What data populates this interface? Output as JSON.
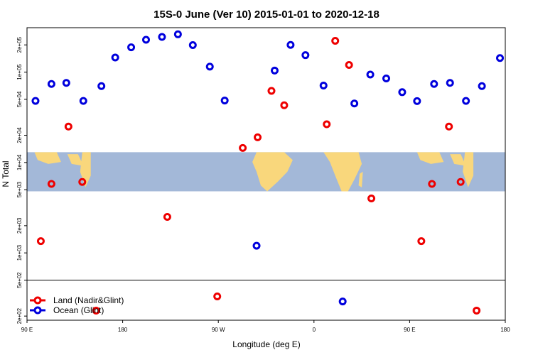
{
  "chart_data": {
    "type": "scatter",
    "title": "15S-0 June (Ver 10)   2015-01-01 to 2020-12-18",
    "xlabel": "Longitude (deg E)",
    "ylabel": "N Total",
    "x_ticks": [
      {
        "value": 90,
        "label": "90 E"
      },
      {
        "value": 180,
        "label": "180"
      },
      {
        "value": 270,
        "label": "90 W"
      },
      {
        "value": 360,
        "label": "0"
      },
      {
        "value": 450,
        "label": "90 E"
      },
      {
        "value": 540,
        "label": "180"
      }
    ],
    "xlim": [
      90,
      540
    ],
    "y_scale": "log",
    "y_ticks": [
      {
        "value": 200,
        "label": "2e+02"
      },
      {
        "value": 500,
        "label": "5e+02"
      },
      {
        "value": 1000,
        "label": "1e+03"
      },
      {
        "value": 2000,
        "label": "2e+03"
      },
      {
        "value": 5000,
        "label": "5e+03"
      },
      {
        "value": 10000,
        "label": "1e+04"
      },
      {
        "value": 20000,
        "label": "2e+04"
      },
      {
        "value": 50000,
        "label": "5e+04"
      },
      {
        "value": 100000,
        "label": "1e+05"
      },
      {
        "value": 200000,
        "label": "2e+05"
      }
    ],
    "ylim": [
      180,
      310000
    ],
    "reference_line_y": 500,
    "legend_position": "bottom-left",
    "series": [
      {
        "name": "Land (Nadir&Glint)",
        "color": "#ee0000",
        "points": [
          {
            "x": 103,
            "y": 1350
          },
          {
            "x": 113,
            "y": 5800
          },
          {
            "x": 129,
            "y": 25000
          },
          {
            "x": 142,
            "y": 6100
          },
          {
            "x": 155,
            "y": 230
          },
          {
            "x": 222,
            "y": 2500
          },
          {
            "x": 269,
            "y": 330
          },
          {
            "x": 293,
            "y": 14500
          },
          {
            "x": 307,
            "y": 19000
          },
          {
            "x": 320,
            "y": 62000
          },
          {
            "x": 332,
            "y": 43000
          },
          {
            "x": 372,
            "y": 26500
          },
          {
            "x": 380,
            "y": 222000
          },
          {
            "x": 393,
            "y": 120000
          },
          {
            "x": 414,
            "y": 4000
          },
          {
            "x": 461,
            "y": 1350
          },
          {
            "x": 471,
            "y": 5800
          },
          {
            "x": 487,
            "y": 25000
          },
          {
            "x": 498,
            "y": 6100
          },
          {
            "x": 513,
            "y": 230
          }
        ]
      },
      {
        "name": "Ocean (Glint)",
        "color": "#0000dd",
        "points": [
          {
            "x": 98,
            "y": 48000
          },
          {
            "x": 113,
            "y": 74000
          },
          {
            "x": 127,
            "y": 76000
          },
          {
            "x": 143,
            "y": 48000
          },
          {
            "x": 160,
            "y": 70000
          },
          {
            "x": 173,
            "y": 145000
          },
          {
            "x": 188,
            "y": 188000
          },
          {
            "x": 202,
            "y": 228000
          },
          {
            "x": 217,
            "y": 245000
          },
          {
            "x": 232,
            "y": 262000
          },
          {
            "x": 246,
            "y": 199000
          },
          {
            "x": 262,
            "y": 115000
          },
          {
            "x": 276,
            "y": 48500
          },
          {
            "x": 306,
            "y": 1200
          },
          {
            "x": 323,
            "y": 104000
          },
          {
            "x": 338,
            "y": 200000
          },
          {
            "x": 352,
            "y": 154000
          },
          {
            "x": 369,
            "y": 71000
          },
          {
            "x": 387,
            "y": 290
          },
          {
            "x": 398,
            "y": 45000
          },
          {
            "x": 413,
            "y": 94000
          },
          {
            "x": 428,
            "y": 85000
          },
          {
            "x": 443,
            "y": 60000
          },
          {
            "x": 457,
            "y": 47800
          },
          {
            "x": 473,
            "y": 74000
          },
          {
            "x": 488,
            "y": 76000
          },
          {
            "x": 503,
            "y": 48000
          },
          {
            "x": 518,
            "y": 70000
          },
          {
            "x": 535,
            "y": 143000
          }
        ]
      }
    ],
    "map_strip": {
      "y_range": [
        4800,
        13000
      ],
      "ocean_color": "#a3b8d8",
      "land_color": "#f9d77c"
    }
  }
}
